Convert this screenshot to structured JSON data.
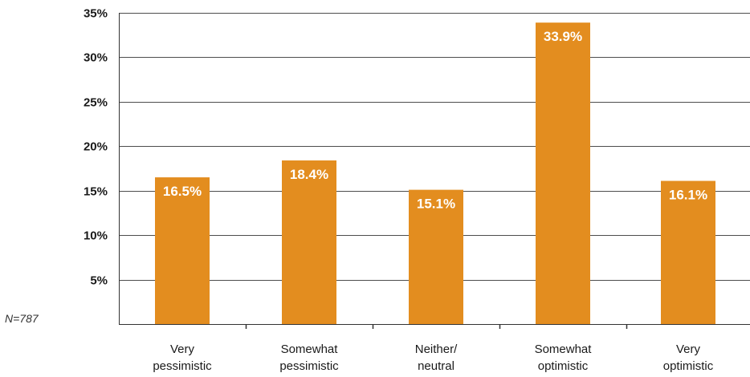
{
  "note": "N=787",
  "colors": {
    "bar": "#E38D1F",
    "grid": "#4d4d4d",
    "axis": "#333333",
    "label_on_bar": "#ffffff"
  },
  "chart_data": {
    "type": "bar",
    "title": "",
    "xlabel": "",
    "ylabel": "",
    "categories": [
      [
        "Very",
        "pessimistic"
      ],
      [
        "Somewhat",
        "pessimistic"
      ],
      [
        "Neither/",
        "neutral"
      ],
      [
        "Somewhat",
        "optimistic"
      ],
      [
        "Very",
        "optimistic"
      ]
    ],
    "values": [
      16.5,
      18.4,
      15.1,
      33.9,
      16.1
    ],
    "data_labels": [
      "16.5%",
      "18.4%",
      "15.1%",
      "33.9%",
      "16.1%"
    ],
    "ylim": [
      0,
      35
    ],
    "yticks": [
      5,
      10,
      15,
      20,
      25,
      30,
      35
    ],
    "ytick_labels": [
      "5%",
      "10%",
      "15%",
      "20%",
      "25%",
      "30%",
      "35%"
    ],
    "grid": true,
    "legend": "none"
  }
}
